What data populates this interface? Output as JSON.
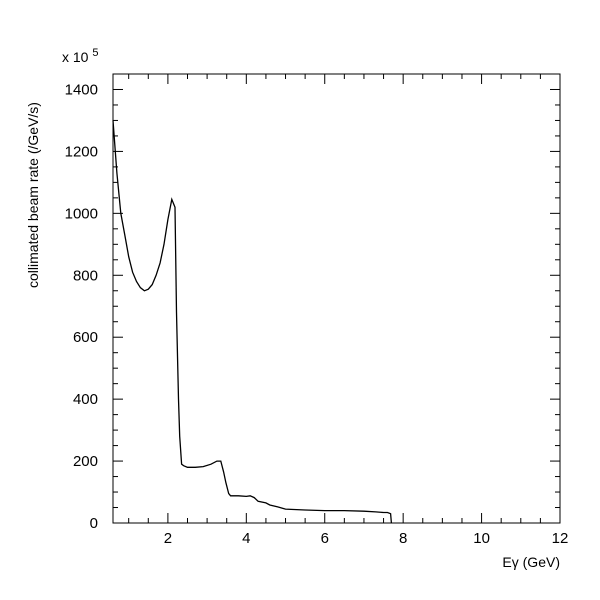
{
  "chart_data": {
    "type": "line",
    "title": "",
    "xlabel": "Eγ (GeV)",
    "ylabel": "collimated beam rate (/GeV/s)",
    "y_multiplier_label": "x 10",
    "y_multiplier_exponent": "5",
    "xlim": [
      0.6,
      12
    ],
    "ylim": [
      0,
      1450
    ],
    "x_ticks": [
      2,
      4,
      6,
      8,
      10,
      12
    ],
    "x_tick_labels": [
      "2",
      "4",
      "6",
      "8",
      "10",
      "12"
    ],
    "y_ticks": [
      0,
      200,
      400,
      600,
      800,
      1000,
      1200,
      1400
    ],
    "y_tick_labels": [
      "0",
      "200",
      "400",
      "600",
      "800",
      "1000",
      "1200",
      "1400"
    ],
    "grid": false,
    "line_color": "#000000",
    "series": [
      {
        "x": [
          0.6,
          0.7,
          0.8,
          0.9,
          1.0,
          1.1,
          1.2,
          1.3,
          1.4,
          1.5,
          1.6,
          1.7,
          1.8,
          1.9,
          2.0,
          2.1,
          2.18,
          2.22,
          2.27,
          2.3,
          2.35,
          2.4,
          2.5,
          2.7,
          2.9,
          3.1,
          3.25,
          3.35,
          3.42,
          3.48,
          3.55,
          3.6,
          3.8,
          4.0,
          4.1,
          4.2,
          4.3,
          4.5,
          4.6,
          4.8,
          5.0,
          5.5,
          6.0,
          6.5,
          7.0,
          7.3,
          7.5,
          7.6,
          7.68,
          7.7
        ],
        "y": [
          1300,
          1130,
          1000,
          930,
          860,
          810,
          780,
          760,
          750,
          755,
          770,
          800,
          840,
          900,
          980,
          1045,
          1020,
          680,
          400,
          280,
          190,
          185,
          180,
          180,
          182,
          190,
          200,
          200,
          165,
          130,
          95,
          88,
          88,
          86,
          88,
          82,
          70,
          65,
          58,
          52,
          45,
          42,
          40,
          40,
          38,
          36,
          34,
          34,
          30,
          0
        ]
      }
    ]
  }
}
